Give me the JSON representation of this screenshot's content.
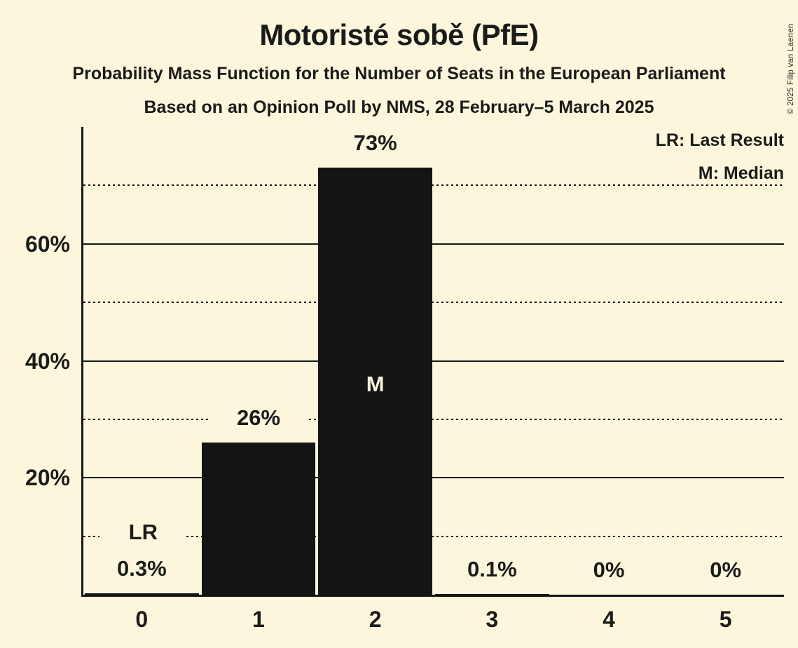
{
  "page": {
    "background_color": "#FCF7DC",
    "text_color": "#1B1B1B"
  },
  "header": {
    "title": "Motoristé sobě (PfE)",
    "subtitle1": "Probability Mass Function for the Number of Seats in the European Parliament",
    "subtitle2": "Based on an Opinion Poll by NMS, 28 February–5 March 2025"
  },
  "legend": {
    "lr": "LR: Last Result",
    "m": "M: Median"
  },
  "copyright": "© 2025 Filip van Laenen",
  "chart_data": {
    "type": "bar",
    "title": "Motoristé sobě (PfE)",
    "categories": [
      "0",
      "1",
      "2",
      "3",
      "4",
      "5"
    ],
    "values": [
      0.3,
      26,
      73,
      0.1,
      0,
      0
    ],
    "value_labels": [
      "0.3%",
      "26%",
      "73%",
      "0.1%",
      "0%",
      "0%"
    ],
    "ylim": [
      0,
      80
    ],
    "y_ticks": [
      {
        "value": 20,
        "label": "20%"
      },
      {
        "value": 40,
        "label": "40%"
      },
      {
        "value": 60,
        "label": "60%"
      }
    ],
    "solid_gridlines": [
      20,
      40,
      60
    ],
    "dotted_gridlines": [
      10,
      30,
      50,
      70
    ],
    "grid": true,
    "legend_position": "top-right",
    "bar_color": "#141414",
    "median": {
      "category_index": 2,
      "label": "M",
      "label_color": "#F7F1DC"
    },
    "last_result": {
      "category_index": 0,
      "label": "LR"
    }
  }
}
